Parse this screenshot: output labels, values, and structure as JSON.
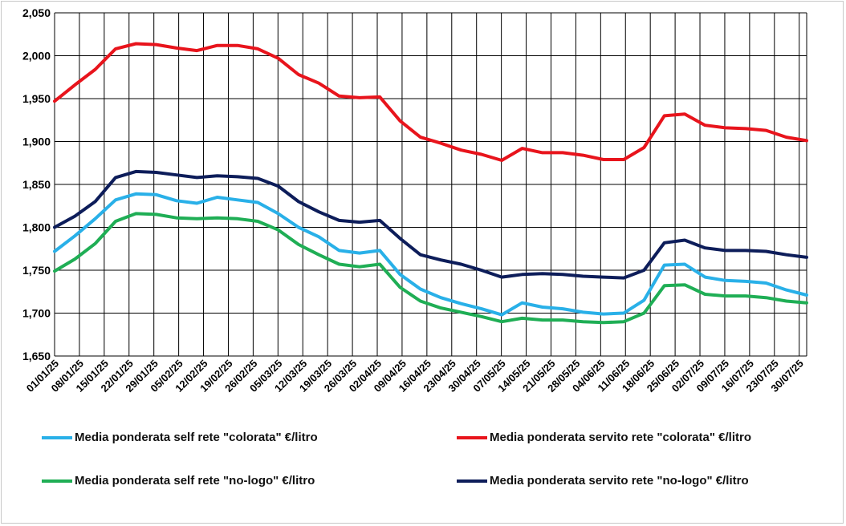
{
  "chart_data": {
    "type": "line",
    "title": "",
    "xlabel": "",
    "ylabel": "",
    "ylim": [
      1.65,
      2.05
    ],
    "y_ticks": [
      "1,650",
      "1,700",
      "1,750",
      "1,800",
      "1,850",
      "1,900",
      "1,950",
      "2,000",
      "2,050"
    ],
    "x_ticks": [
      "01/01/25",
      "08/01/25",
      "15/01/25",
      "22/01/25",
      "29/01/25",
      "05/02/25",
      "12/02/25",
      "19/02/25",
      "26/02/25",
      "05/03/25",
      "12/03/25",
      "19/03/25",
      "26/03/25",
      "02/04/25",
      "09/04/25",
      "16/04/25",
      "23/04/25",
      "30/04/25",
      "07/05/25",
      "14/05/25",
      "21/05/25",
      "28/05/25",
      "04/06/25",
      "11/06/25",
      "18/06/25",
      "25/06/25",
      "02/07/25",
      "09/07/25",
      "16/07/25",
      "23/07/25",
      "30/07/25"
    ],
    "grid": true,
    "legend_position": "bottom",
    "series": [
      {
        "name": "Media ponderata self rete \"colorata\" €/litro",
        "color": "#29b0e8",
        "values": [
          1.772,
          1.79,
          1.81,
          1.832,
          1.839,
          1.838,
          1.831,
          1.828,
          1.835,
          1.832,
          1.829,
          1.816,
          1.8,
          1.789,
          1.773,
          1.77,
          1.773,
          1.745,
          1.728,
          1.718,
          1.711,
          1.705,
          1.698,
          1.712,
          1.707,
          1.705,
          1.701,
          1.699,
          1.7,
          1.715,
          1.756,
          1.757,
          1.742,
          1.738,
          1.737,
          1.735,
          1.727,
          1.721
        ]
      },
      {
        "name": "Media ponderata servito rete \"colorata\" €/litro",
        "color": "#e8141c",
        "values": [
          1.947,
          1.966,
          1.984,
          2.008,
          2.014,
          2.013,
          2.009,
          2.006,
          2.012,
          2.012,
          2.008,
          1.997,
          1.978,
          1.968,
          1.953,
          1.951,
          1.952,
          1.924,
          1.905,
          1.898,
          1.89,
          1.885,
          1.878,
          1.892,
          1.887,
          1.887,
          1.884,
          1.879,
          1.879,
          1.893,
          1.93,
          1.932,
          1.919,
          1.916,
          1.915,
          1.913,
          1.905,
          1.901
        ]
      },
      {
        "name": "Media ponderata self rete \"no-logo\" €/litro",
        "color": "#1fae55",
        "values": [
          1.749,
          1.763,
          1.781,
          1.807,
          1.816,
          1.815,
          1.811,
          1.81,
          1.811,
          1.81,
          1.807,
          1.797,
          1.78,
          1.768,
          1.757,
          1.754,
          1.757,
          1.73,
          1.714,
          1.706,
          1.701,
          1.696,
          1.69,
          1.694,
          1.692,
          1.692,
          1.69,
          1.689,
          1.69,
          1.7,
          1.732,
          1.733,
          1.722,
          1.72,
          1.72,
          1.718,
          1.714,
          1.712
        ]
      },
      {
        "name": "Media ponderata servito rete \"no-logo\" €/litro",
        "color": "#0d1d5a",
        "values": [
          1.8,
          1.813,
          1.83,
          1.858,
          1.865,
          1.864,
          1.861,
          1.858,
          1.86,
          1.859,
          1.857,
          1.848,
          1.83,
          1.818,
          1.808,
          1.806,
          1.808,
          1.787,
          1.768,
          1.762,
          1.757,
          1.75,
          1.742,
          1.745,
          1.746,
          1.745,
          1.743,
          1.742,
          1.741,
          1.75,
          1.782,
          1.785,
          1.776,
          1.773,
          1.773,
          1.772,
          1.768,
          1.765
        ]
      }
    ]
  }
}
